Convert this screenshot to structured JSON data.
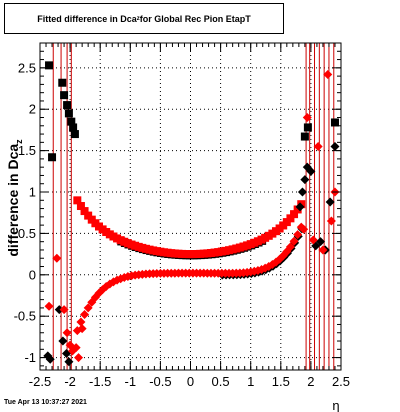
{
  "title": {
    "main": "Fitted difference in Dca",
    "sub": "z",
    "rest": " for Global Rec Pion EtapT"
  },
  "footer": {
    "timestamp": "Tue Apr 13 10:37:27 2021"
  },
  "chart_data": {
    "type": "scatter",
    "xlabel": "η",
    "ylabel": "difference in Dca",
    "ylabel_sub": "z",
    "xlim": [
      -2.5,
      2.5
    ],
    "ylim": [
      -1.15,
      2.8
    ],
    "x_ticks": [
      "-2.5",
      "-2",
      "-1.5",
      "-1",
      "-0.5",
      "0",
      "0.5",
      "1",
      "1.5",
      "2",
      "2.5"
    ],
    "y_ticks": [
      "-1",
      "-0.5",
      "0",
      "0.5",
      "1",
      "1.5",
      "2",
      "2.5"
    ],
    "grid": true,
    "colors": {
      "red": "#ff0000",
      "black": "#000000",
      "errbar": "#cc0000"
    },
    "series": [
      {
        "marker": "square",
        "color": "black",
        "x": [
          -2.35,
          -2.3,
          -2.13,
          -2.1,
          -2.05,
          -2.02,
          -1.98,
          -1.95,
          -1.92
        ],
        "y": [
          2.53,
          1.42,
          2.32,
          2.17,
          2.05,
          1.95,
          1.85,
          1.78,
          1.7
        ]
      },
      {
        "marker": "circle",
        "color": "black",
        "x": [
          -2.37,
          -2.33,
          -2.18,
          -2.12,
          -2.06,
          -2.02,
          1.82,
          1.86,
          1.9,
          1.94,
          2.0,
          2.08,
          2.16,
          2.24,
          2.32,
          2.4
        ],
        "y": [
          -0.98,
          -1.02,
          -0.42,
          -0.8,
          -0.95,
          -1.05,
          0.82,
          1.0,
          1.15,
          1.3,
          1.25,
          0.35,
          0.4,
          0.3,
          0.88,
          1.55
        ]
      },
      {
        "marker": "square",
        "color": "black",
        "x": [
          1.9,
          1.95,
          2.4
        ],
        "y": [
          1.67,
          1.78,
          1.84
        ]
      },
      {
        "marker": "circle",
        "color": "red",
        "x": [
          -2.35,
          -2.22,
          -2.1,
          -2.05,
          -2.0,
          -1.96,
          -1.9,
          -1.86,
          -1.8,
          1.88,
          1.94,
          2.04,
          2.12,
          2.2,
          2.28,
          2.34,
          2.4
        ],
        "y": [
          -0.38,
          0.2,
          -0.42,
          -0.7,
          -0.85,
          -0.92,
          -0.88,
          -1.0,
          -0.65,
          0.55,
          1.9,
          0.42,
          1.55,
          0.3,
          2.42,
          0.65,
          1.0
        ]
      }
    ]
  }
}
